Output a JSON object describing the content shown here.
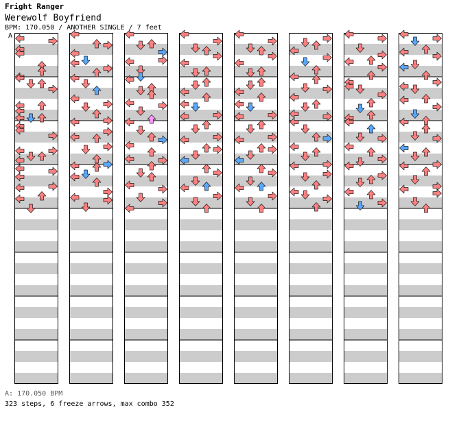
{
  "header": {
    "game": "Fright Ranger",
    "song": "Werewolf Boyfriend",
    "info": "BPM: 170.050 / ANOTHER SINGLE / 7 feet"
  },
  "section_marker": "A",
  "footer": {
    "bpm": "A: 170.050 BPM",
    "stats": "323 steps, 6 freeze arrows, max combo 352"
  },
  "colors": {
    "quarter": "#ff8080",
    "eighth": "#5aa7ff",
    "sixteenth": "#ff99ff",
    "freeze": "#b4f5b4",
    "stripe": "#cccccc"
  },
  "chart_data": {
    "type": "table",
    "notes": [
      [
        0,
        0,
        0,
        3,
        "q"
      ],
      [
        0,
        1,
        3,
        1,
        "q"
      ],
      [
        0,
        2,
        0,
        3,
        "q"
      ],
      [
        0,
        3,
        0,
        2,
        "q"
      ],
      [
        0,
        5,
        2,
        3,
        "q"
      ],
      [
        0,
        6,
        2,
        3,
        "q"
      ],
      [
        0,
        7,
        0,
        3,
        "q"
      ],
      [
        0,
        8,
        0,
        0,
        "q"
      ],
      [
        0,
        9,
        1,
        0,
        "q"
      ],
      [
        0,
        9,
        2,
        0,
        "q"
      ],
      [
        0,
        10,
        3,
        0,
        "q"
      ],
      [
        0,
        13,
        0,
        0,
        "q"
      ],
      [
        0,
        13,
        2,
        0,
        "q"
      ],
      [
        0,
        14,
        0,
        0,
        "q"
      ],
      [
        0,
        15,
        0,
        1,
        "q"
      ],
      [
        0,
        15,
        1,
        1,
        "e"
      ],
      [
        0,
        15,
        2,
        1,
        "q"
      ],
      [
        0,
        16,
        0,
        3,
        "q"
      ],
      [
        0,
        17,
        0,
        2,
        "q"
      ],
      [
        0,
        18,
        3,
        2,
        "q"
      ],
      [
        0,
        21,
        0,
        1,
        "q"
      ],
      [
        0,
        21,
        3,
        1,
        "q"
      ],
      [
        0,
        22,
        1,
        1,
        "q"
      ],
      [
        0,
        22,
        2,
        1,
        "q"
      ],
      [
        0,
        23,
        0,
        0,
        "q"
      ],
      [
        0,
        24,
        0,
        2,
        "q"
      ],
      [
        0,
        25,
        3,
        0,
        "q"
      ],
      [
        0,
        26,
        0,
        0,
        "q"
      ],
      [
        0,
        27,
        3,
        3,
        "q"
      ],
      [
        0,
        28,
        0,
        0,
        "q"
      ],
      [
        0,
        29,
        2,
        2,
        "q"
      ],
      [
        0,
        30,
        0,
        0,
        "q"
      ],
      [
        0,
        31,
        1,
        3,
        "q"
      ],
      [
        1,
        0,
        0,
        0,
        "q"
      ],
      [
        1,
        1,
        2,
        3,
        "q"
      ],
      [
        1,
        2,
        3,
        0,
        "q"
      ],
      [
        1,
        3,
        0,
        2,
        "q"
      ],
      [
        1,
        4,
        1,
        3,
        "e"
      ],
      [
        1,
        5,
        0,
        1,
        "q"
      ],
      [
        1,
        6,
        3,
        1,
        "q"
      ],
      [
        1,
        7,
        2,
        0,
        "q"
      ],
      [
        1,
        8,
        0,
        0,
        "q"
      ],
      [
        1,
        9,
        1,
        0,
        "q"
      ],
      [
        1,
        10,
        2,
        1,
        "e"
      ],
      [
        1,
        11,
        0,
        3,
        "q"
      ],
      [
        1,
        12,
        3,
        3,
        "q"
      ],
      [
        1,
        13,
        1,
        1,
        "q"
      ],
      [
        1,
        14,
        2,
        2,
        "q"
      ],
      [
        1,
        15,
        3,
        3,
        "q"
      ],
      [
        1,
        16,
        0,
        0,
        "q"
      ],
      [
        1,
        17,
        3,
        3,
        "q"
      ],
      [
        1,
        18,
        0,
        3,
        "q"
      ],
      [
        1,
        19,
        2,
        0,
        "q"
      ],
      [
        1,
        20,
        3,
        2,
        "q"
      ],
      [
        1,
        21,
        1,
        0,
        "q"
      ],
      [
        1,
        22,
        2,
        3,
        "q"
      ],
      [
        1,
        23,
        3,
        3,
        "e"
      ],
      [
        1,
        24,
        0,
        0,
        "q"
      ],
      [
        1,
        24,
        2,
        1,
        "q"
      ],
      [
        1,
        25,
        1,
        2,
        "e"
      ],
      [
        1,
        26,
        0,
        0,
        "q"
      ],
      [
        1,
        27,
        2,
        0,
        "q"
      ],
      [
        1,
        28,
        3,
        3,
        "q"
      ],
      [
        1,
        29,
        0,
        3,
        "q"
      ],
      [
        1,
        30,
        3,
        1,
        "q"
      ],
      [
        1,
        31,
        1,
        2,
        "q"
      ],
      [
        2,
        0,
        0,
        0,
        "q"
      ],
      [
        2,
        1,
        2,
        3,
        "q"
      ],
      [
        2,
        2,
        1,
        0,
        "q"
      ],
      [
        2,
        3,
        3,
        1,
        "e"
      ],
      [
        2,
        4,
        3,
        3,
        "q"
      ],
      [
        2,
        5,
        0,
        0,
        "q"
      ],
      [
        2,
        6,
        1,
        2,
        "q"
      ],
      [
        2,
        7,
        1,
        3,
        "e"
      ],
      [
        2,
        8,
        0,
        1,
        "q"
      ],
      [
        2,
        9,
        2,
        3,
        "q"
      ],
      [
        2,
        10,
        1,
        1,
        "q"
      ],
      [
        2,
        11,
        2,
        0,
        "q"
      ],
      [
        2,
        12,
        0,
        2,
        "q"
      ],
      [
        2,
        13,
        3,
        0,
        "q"
      ],
      [
        2,
        14,
        1,
        0,
        "q"
      ],
      [
        2,
        15,
        2,
        2,
        "s"
      ],
      [
        2,
        16,
        0,
        0,
        "q"
      ],
      [
        2,
        17,
        1,
        2,
        "q"
      ],
      [
        2,
        18,
        2,
        3,
        "q"
      ],
      [
        2,
        19,
        3,
        1,
        "e"
      ],
      [
        2,
        20,
        0,
        1,
        "q"
      ],
      [
        2,
        21,
        2,
        2,
        "q"
      ],
      [
        2,
        22,
        0,
        3,
        "q"
      ],
      [
        2,
        23,
        3,
        0,
        "q"
      ],
      [
        2,
        24,
        2,
        0,
        "q"
      ],
      [
        2,
        25,
        1,
        1,
        "q"
      ],
      [
        2,
        26,
        2,
        0,
        "q"
      ],
      [
        2,
        27,
        0,
        2,
        "q"
      ],
      [
        2,
        28,
        3,
        1,
        "q"
      ],
      [
        2,
        29,
        1,
        3,
        "q"
      ],
      [
        2,
        30,
        3,
        3,
        "q"
      ],
      [
        2,
        31,
        0,
        3,
        "q"
      ],
      [
        3,
        0,
        0,
        0,
        "q"
      ],
      [
        3,
        1,
        3,
        1,
        "q"
      ],
      [
        3,
        2,
        1,
        2,
        "q"
      ],
      [
        3,
        3,
        2,
        0,
        "q"
      ],
      [
        3,
        4,
        3,
        0,
        "q"
      ],
      [
        3,
        5,
        0,
        1,
        "q"
      ],
      [
        3,
        6,
        2,
        3,
        "q"
      ],
      [
        3,
        7,
        1,
        0,
        "q"
      ],
      [
        3,
        8,
        2,
        3,
        "q"
      ],
      [
        3,
        9,
        1,
        1,
        "q"
      ],
      [
        3,
        10,
        0,
        2,
        "q"
      ],
      [
        3,
        11,
        2,
        2,
        "q"
      ],
      [
        3,
        12,
        0,
        3,
        "q"
      ],
      [
        3,
        13,
        1,
        1,
        "e"
      ],
      [
        3,
        14,
        3,
        3,
        "q"
      ],
      [
        3,
        15,
        0,
        0,
        "q"
      ],
      [
        3,
        16,
        2,
        2,
        "q"
      ],
      [
        3,
        17,
        1,
        1,
        "q"
      ],
      [
        3,
        18,
        3,
        3,
        "q"
      ],
      [
        3,
        19,
        0,
        1,
        "q"
      ],
      [
        3,
        20,
        2,
        3,
        "q"
      ],
      [
        3,
        21,
        3,
        0,
        "q"
      ],
      [
        3,
        22,
        1,
        0,
        "q"
      ],
      [
        3,
        23,
        0,
        0,
        "e"
      ],
      [
        3,
        24,
        2,
        2,
        "q"
      ],
      [
        3,
        25,
        3,
        1,
        "q"
      ],
      [
        3,
        26,
        1,
        3,
        "q"
      ],
      [
        3,
        27,
        2,
        3,
        "e"
      ],
      [
        3,
        28,
        0,
        0,
        "q"
      ],
      [
        3,
        29,
        3,
        2,
        "q"
      ],
      [
        3,
        30,
        1,
        2,
        "q"
      ],
      [
        3,
        31,
        2,
        3,
        "q"
      ],
      [
        4,
        0,
        0,
        0,
        "q"
      ],
      [
        4,
        1,
        3,
        1,
        "q"
      ],
      [
        4,
        2,
        1,
        2,
        "q"
      ],
      [
        4,
        3,
        2,
        0,
        "q"
      ],
      [
        4,
        4,
        3,
        0,
        "q"
      ],
      [
        4,
        5,
        0,
        1,
        "q"
      ],
      [
        4,
        6,
        2,
        3,
        "q"
      ],
      [
        4,
        7,
        1,
        0,
        "q"
      ],
      [
        4,
        8,
        2,
        3,
        "q"
      ],
      [
        4,
        9,
        1,
        1,
        "q"
      ],
      [
        4,
        10,
        0,
        2,
        "q"
      ],
      [
        4,
        11,
        2,
        2,
        "q"
      ],
      [
        4,
        12,
        0,
        3,
        "q"
      ],
      [
        4,
        13,
        1,
        1,
        "e"
      ],
      [
        4,
        14,
        3,
        3,
        "q"
      ],
      [
        4,
        15,
        0,
        0,
        "q"
      ],
      [
        4,
        16,
        2,
        2,
        "q"
      ],
      [
        4,
        17,
        1,
        1,
        "q"
      ],
      [
        4,
        18,
        3,
        3,
        "q"
      ],
      [
        4,
        19,
        0,
        1,
        "q"
      ],
      [
        4,
        20,
        2,
        3,
        "q"
      ],
      [
        4,
        21,
        3,
        0,
        "q"
      ],
      [
        4,
        22,
        1,
        0,
        "q"
      ],
      [
        4,
        23,
        0,
        0,
        "e"
      ],
      [
        4,
        24,
        2,
        2,
        "q"
      ],
      [
        4,
        25,
        3,
        1,
        "q"
      ],
      [
        4,
        26,
        1,
        3,
        "q"
      ],
      [
        4,
        27,
        2,
        3,
        "e"
      ],
      [
        4,
        28,
        0,
        0,
        "q"
      ],
      [
        4,
        29,
        3,
        2,
        "q"
      ],
      [
        4,
        30,
        1,
        2,
        "q"
      ],
      [
        4,
        31,
        2,
        3,
        "q"
      ],
      [
        5,
        0,
        3,
        3,
        "q"
      ],
      [
        5,
        1,
        1,
        2,
        "q"
      ],
      [
        5,
        2,
        2,
        0,
        "q"
      ],
      [
        5,
        3,
        0,
        0,
        "q"
      ],
      [
        5,
        4,
        3,
        1,
        "q"
      ],
      [
        5,
        5,
        1,
        0,
        "e"
      ],
      [
        5,
        6,
        2,
        2,
        "q"
      ],
      [
        5,
        7,
        0,
        3,
        "q"
      ],
      [
        5,
        8,
        2,
        1,
        "q"
      ],
      [
        5,
        9,
        1,
        3,
        "q"
      ],
      [
        5,
        10,
        3,
        0,
        "q"
      ],
      [
        5,
        11,
        0,
        2,
        "q"
      ],
      [
        5,
        12,
        2,
        3,
        "q"
      ],
      [
        5,
        13,
        1,
        1,
        "q"
      ],
      [
        5,
        14,
        0,
        2,
        "q"
      ],
      [
        5,
        15,
        3,
        0,
        "q"
      ],
      [
        5,
        16,
        0,
        0,
        "q"
      ],
      [
        5,
        17,
        1,
        1,
        "q"
      ],
      [
        5,
        18,
        2,
        3,
        "q"
      ],
      [
        5,
        19,
        3,
        0,
        "e"
      ],
      [
        5,
        20,
        0,
        2,
        "q"
      ],
      [
        5,
        21,
        2,
        2,
        "q"
      ],
      [
        5,
        22,
        1,
        1,
        "q"
      ],
      [
        5,
        23,
        3,
        3,
        "q"
      ],
      [
        5,
        24,
        0,
        0,
        "q"
      ],
      [
        5,
        25,
        3,
        2,
        "q"
      ],
      [
        5,
        26,
        1,
        0,
        "q"
      ],
      [
        5,
        27,
        2,
        2,
        "q"
      ],
      [
        5,
        28,
        0,
        3,
        "q"
      ],
      [
        5,
        29,
        1,
        1,
        "q"
      ],
      [
        5,
        30,
        3,
        0,
        "q"
      ],
      [
        5,
        31,
        2,
        2,
        "q"
      ],
      [
        6,
        0,
        0,
        0,
        "q"
      ],
      [
        6,
        0,
        3,
        3,
        "q"
      ],
      [
        6,
        2,
        1,
        2,
        "q"
      ],
      [
        6,
        3,
        3,
        3,
        "q"
      ],
      [
        6,
        4,
        2,
        3,
        "q"
      ],
      [
        6,
        5,
        0,
        0,
        "q"
      ],
      [
        6,
        6,
        3,
        0,
        "q"
      ],
      [
        6,
        7,
        2,
        2,
        "q"
      ],
      [
        6,
        8,
        0,
        3,
        "q"
      ],
      [
        6,
        9,
        0,
        2,
        "q"
      ],
      [
        6,
        10,
        1,
        0,
        "q"
      ],
      [
        6,
        11,
        3,
        0,
        "q"
      ],
      [
        6,
        12,
        2,
        2,
        "q"
      ],
      [
        6,
        13,
        1,
        2,
        "e"
      ],
      [
        6,
        14,
        2,
        3,
        "q"
      ],
      [
        6,
        15,
        0,
        1,
        "q"
      ],
      [
        6,
        16,
        0,
        0,
        "q"
      ],
      [
        6,
        17,
        2,
        1,
        "e"
      ],
      [
        6,
        18,
        1,
        3,
        "q"
      ],
      [
        6,
        19,
        3,
        0,
        "q"
      ],
      [
        6,
        20,
        0,
        2,
        "q"
      ],
      [
        6,
        21,
        2,
        2,
        "q"
      ],
      [
        6,
        22,
        3,
        3,
        "q"
      ],
      [
        6,
        23,
        1,
        1,
        "q"
      ],
      [
        6,
        24,
        0,
        0,
        "q"
      ],
      [
        6,
        25,
        3,
        3,
        "q"
      ],
      [
        6,
        26,
        2,
        2,
        "q"
      ],
      [
        6,
        27,
        1,
        0,
        "q"
      ],
      [
        6,
        28,
        0,
        3,
        "q"
      ],
      [
        6,
        29,
        2,
        1,
        "q"
      ],
      [
        6,
        30,
        3,
        3,
        "q"
      ],
      [
        6,
        31,
        1,
        1,
        "e"
      ],
      [
        7,
        0,
        0,
        0,
        "q"
      ],
      [
        7,
        0,
        3,
        3,
        "q"
      ],
      [
        7,
        1,
        1,
        1,
        "e"
      ],
      [
        7,
        2,
        2,
        3,
        "q"
      ],
      [
        7,
        3,
        0,
        1,
        "q"
      ],
      [
        7,
        4,
        3,
        0,
        "q"
      ],
      [
        7,
        5,
        1,
        2,
        "q"
      ],
      [
        7,
        6,
        0,
        0,
        "e"
      ],
      [
        7,
        7,
        2,
        2,
        "q"
      ],
      [
        7,
        8,
        3,
        3,
        "q"
      ],
      [
        7,
        9,
        0,
        2,
        "q"
      ],
      [
        7,
        10,
        1,
        0,
        "q"
      ],
      [
        7,
        11,
        2,
        3,
        "q"
      ],
      [
        7,
        12,
        0,
        0,
        "q"
      ],
      [
        7,
        13,
        3,
        1,
        "q"
      ],
      [
        7,
        14,
        1,
        2,
        "e"
      ],
      [
        7,
        15,
        2,
        3,
        "q"
      ],
      [
        7,
        16,
        0,
        0,
        "q"
      ],
      [
        7,
        17,
        2,
        1,
        "q"
      ],
      [
        7,
        18,
        1,
        2,
        "q"
      ],
      [
        7,
        19,
        3,
        0,
        "q"
      ],
      [
        7,
        20,
        0,
        3,
        "e"
      ],
      [
        7,
        21,
        2,
        2,
        "q"
      ],
      [
        7,
        22,
        1,
        1,
        "q"
      ],
      [
        7,
        23,
        3,
        3,
        "q"
      ],
      [
        7,
        24,
        0,
        0,
        "q"
      ],
      [
        7,
        25,
        2,
        0,
        "q"
      ],
      [
        7,
        26,
        1,
        2,
        "q"
      ],
      [
        7,
        27,
        3,
        3,
        "q"
      ],
      [
        7,
        28,
        0,
        1,
        "q"
      ],
      [
        7,
        29,
        3,
        0,
        "q"
      ],
      [
        7,
        30,
        1,
        2,
        "q"
      ],
      [
        7,
        31,
        2,
        3,
        "q"
      ]
    ],
    "freezes": [
      [
        0,
        20,
        0,
        1
      ],
      [
        0,
        20,
        1,
        1
      ],
      [
        0,
        24,
        1,
        2
      ],
      [
        0,
        24,
        2,
        2
      ],
      [
        7,
        28,
        0,
        3
      ],
      [
        7,
        28,
        3,
        3
      ]
    ]
  }
}
